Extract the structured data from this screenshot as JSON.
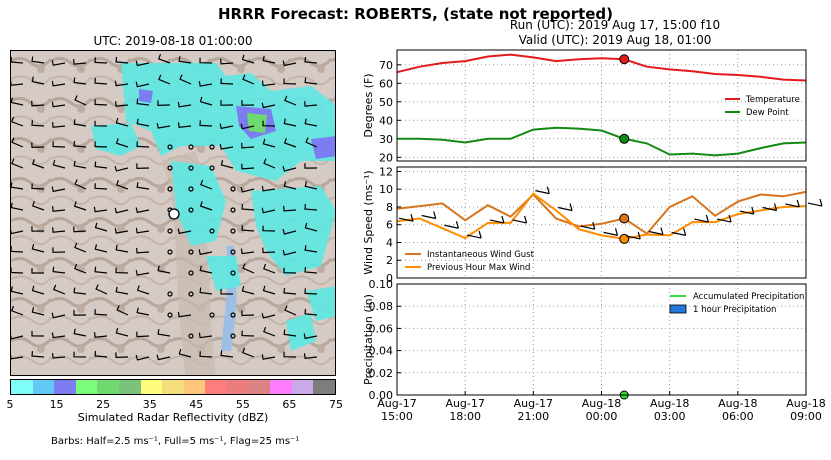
{
  "titles": {
    "suptitle": "HRRR Forecast: ROBERTS, (state not reported)",
    "run": "Run (UTC): 2019 Aug 17, 15:00 f10",
    "valid": "Valid (UTC): 2019 Aug 18, 01:00",
    "map_utc": "UTC: 2019-08-18 01:00:00"
  },
  "colorbar": {
    "label": "Simulated Radar Reflectivity (dBZ)",
    "ticks": [
      "5",
      "15",
      "25",
      "35",
      "45",
      "55",
      "65",
      "75"
    ],
    "colors": [
      "#7ffdf9",
      "#62c9f7",
      "#7d7df2",
      "#7bfc7b",
      "#6fd86f",
      "#7bc27b",
      "#fdfd7b",
      "#f5dd7b",
      "#fdc67b",
      "#fd7d7d",
      "#ea7d7d",
      "#dd8282",
      "#fd7dfd",
      "#c9a9e8",
      "#7d7d7d"
    ]
  },
  "barbs_note": "Barbs: Half=2.5 ms⁻¹, Full=5 ms⁻¹, Flag=25 ms⁻¹",
  "chart_data": [
    {
      "type": "line",
      "ylabel": "Degrees (F)",
      "ylim": [
        18,
        78
      ],
      "yticks": [
        "20",
        "30",
        "40",
        "50",
        "60",
        "70"
      ],
      "x_hours": [
        0,
        1,
        2,
        3,
        4,
        5,
        6,
        7,
        8,
        9,
        10,
        11,
        12,
        13,
        14,
        15,
        16,
        17,
        18
      ],
      "series": [
        {
          "name": "Temperature",
          "color": "#e31a1c",
          "values": [
            66,
            69,
            71,
            72,
            74.5,
            75.5,
            74,
            72,
            73,
            73.5,
            73,
            69,
            67.5,
            66.5,
            65,
            64.5,
            63.5,
            62,
            61.5
          ]
        },
        {
          "name": "Dew Point",
          "color": "#138a13",
          "values": [
            30,
            30,
            29.5,
            28,
            30,
            30,
            35,
            36,
            35.5,
            34.5,
            30,
            27.5,
            21.5,
            22,
            21,
            22,
            25,
            27.5,
            28
          ]
        }
      ],
      "marker_hour": 10,
      "legend": "right"
    },
    {
      "type": "line",
      "ylabel": "Wind Speed (ms⁻¹)",
      "ylim": [
        0,
        12.5
      ],
      "yticks": [
        "0",
        "2",
        "4",
        "6",
        "8",
        "10",
        "12"
      ],
      "x_hours": [
        0,
        1,
        2,
        3,
        4,
        5,
        6,
        7,
        8,
        9,
        10,
        11,
        12,
        13,
        14,
        15,
        16,
        17,
        18
      ],
      "series": [
        {
          "name": "Instantaneous Wind Gust",
          "color": "#d7741e",
          "values": [
            7.8,
            8.1,
            8.4,
            6.5,
            8.2,
            6.9,
            9.4,
            6.7,
            5.8,
            6.1,
            6.7,
            5.0,
            8.0,
            9.2,
            7.0,
            8.6,
            9.4,
            9.2,
            9.7
          ]
        },
        {
          "name": "Previous Hour Max Wind",
          "color": "#fe8c00",
          "values": [
            6.4,
            6.7,
            5.6,
            4.5,
            6.2,
            6.2,
            9.5,
            7.6,
            5.5,
            4.8,
            4.4,
            4.9,
            4.8,
            6.3,
            6.3,
            7.2,
            7.6,
            8.0,
            8.1
          ]
        }
      ],
      "marker_hour": 10,
      "legend": "bottom-left"
    },
    {
      "type": "bar",
      "ylabel": "Precipitation (in)",
      "ylim": [
        0,
        0.1
      ],
      "yticks": [
        "0.00",
        "0.02",
        "0.04",
        "0.06",
        "0.08",
        "0.10"
      ],
      "series": [
        {
          "name": "Accumulated Precipitation",
          "color": "#33dd33",
          "values": [
            0
          ]
        },
        {
          "name": "1 hour Precipitation",
          "color": "#2277dd",
          "values": [
            0
          ]
        }
      ],
      "marker_hour": 10,
      "legend": "top-right"
    }
  ],
  "x_axis": {
    "hour_range": [
      0,
      18
    ],
    "ticks": [
      {
        "hour": 0,
        "line1": "Aug-17",
        "line2": "15:00"
      },
      {
        "hour": 3,
        "line1": "Aug-17",
        "line2": "18:00"
      },
      {
        "hour": 6,
        "line1": "Aug-17",
        "line2": "21:00"
      },
      {
        "hour": 9,
        "line1": "Aug-18",
        "line2": "00:00"
      },
      {
        "hour": 12,
        "line1": "Aug-18",
        "line2": "03:00"
      },
      {
        "hour": 15,
        "line1": "Aug-18",
        "line2": "06:00"
      },
      {
        "hour": 18,
        "line1": "Aug-18",
        "line2": "09:00"
      }
    ]
  }
}
